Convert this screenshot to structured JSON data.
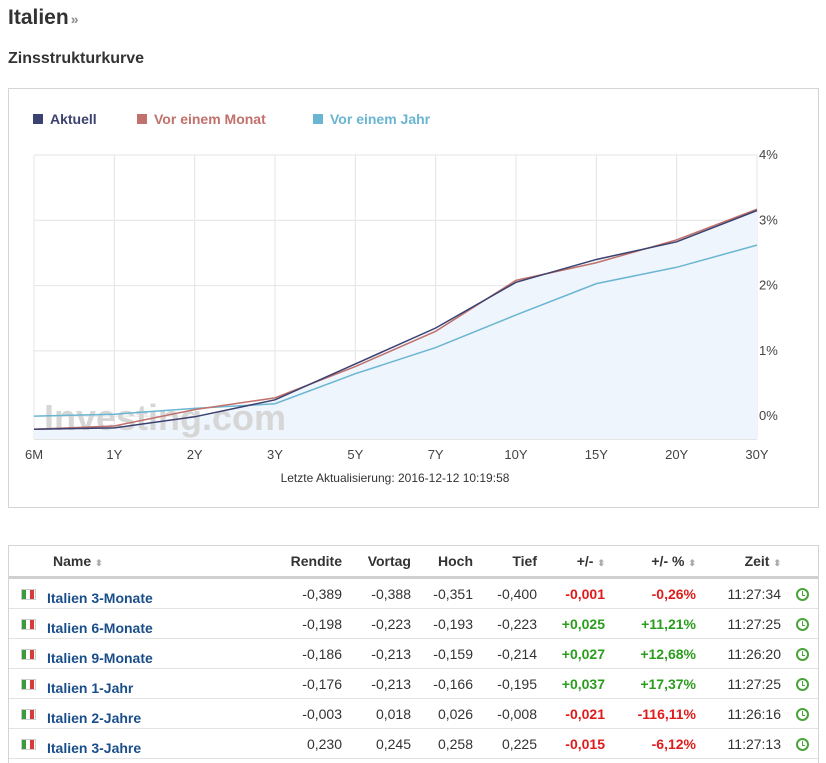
{
  "header": {
    "title": "Italien",
    "title_arrow": "»",
    "subtitle": "Zinsstrukturkurve"
  },
  "chart_data": {
    "type": "line",
    "categories": [
      "6M",
      "1Y",
      "2Y",
      "3Y",
      "5Y",
      "7Y",
      "10Y",
      "15Y",
      "20Y",
      "30Y"
    ],
    "series": [
      {
        "name": "Aktuell",
        "color": "#3b4170",
        "values": [
          -0.2,
          -0.18,
          -0.01,
          0.25,
          0.8,
          1.35,
          2.05,
          2.4,
          2.67,
          3.15
        ]
      },
      {
        "name": "Vor einem Monat",
        "color": "#c0716c",
        "values": [
          -0.2,
          -0.15,
          0.1,
          0.28,
          0.76,
          1.3,
          2.08,
          2.35,
          2.7,
          3.17
        ]
      },
      {
        "name": "Vor einem Jahr",
        "color": "#6ab5d1",
        "values": [
          0.0,
          0.03,
          0.12,
          0.19,
          0.65,
          1.05,
          1.55,
          2.03,
          2.28,
          2.62
        ]
      }
    ],
    "yticks": [
      "4%",
      "3%",
      "2%",
      "1%",
      "0%"
    ],
    "ylim": [
      -0.35,
      4
    ],
    "footnote": "Letzte Aktualisierung: 2016-12-12 10:19:58",
    "watermark": "Investing.com",
    "legend_position": "top-left",
    "grid": true
  },
  "table": {
    "headers": {
      "name": "Name",
      "rendite": "Rendite",
      "vortag": "Vortag",
      "hoch": "Hoch",
      "tief": "Tief",
      "change": "+/-",
      "change_pct": "+/- %",
      "zeit": "Zeit"
    },
    "sort_glyph": "⬍",
    "flag_colors": [
      "#3b9a3b",
      "#ffffff",
      "#d83a3a"
    ],
    "rows": [
      {
        "name": "Italien 3-Monate",
        "rendite": "-0,389",
        "vortag": "-0,388",
        "hoch": "-0,351",
        "tief": "-0,400",
        "change": "-0,001",
        "change_pct": "-0,26%",
        "zeit": "11:27:34",
        "dir": "neg"
      },
      {
        "name": "Italien 6-Monate",
        "rendite": "-0,198",
        "vortag": "-0,223",
        "hoch": "-0,193",
        "tief": "-0,223",
        "change": "+0,025",
        "change_pct": "+11,21%",
        "zeit": "11:27:25",
        "dir": "pos"
      },
      {
        "name": "Italien 9-Monate",
        "rendite": "-0,186",
        "vortag": "-0,213",
        "hoch": "-0,159",
        "tief": "-0,214",
        "change": "+0,027",
        "change_pct": "+12,68%",
        "zeit": "11:26:20",
        "dir": "pos"
      },
      {
        "name": "Italien 1-Jahr",
        "rendite": "-0,176",
        "vortag": "-0,213",
        "hoch": "-0,166",
        "tief": "-0,195",
        "change": "+0,037",
        "change_pct": "+17,37%",
        "zeit": "11:27:25",
        "dir": "pos"
      },
      {
        "name": "Italien 2-Jahre",
        "rendite": "-0,003",
        "vortag": "0,018",
        "hoch": "0,026",
        "tief": "-0,008",
        "change": "-0,021",
        "change_pct": "-116,11%",
        "zeit": "11:26:16",
        "dir": "neg"
      },
      {
        "name": "Italien 3-Jahre",
        "rendite": "0,230",
        "vortag": "0,245",
        "hoch": "0,258",
        "tief": "0,225",
        "change": "-0,015",
        "change_pct": "-6,12%",
        "zeit": "11:27:13",
        "dir": "neg"
      }
    ]
  }
}
